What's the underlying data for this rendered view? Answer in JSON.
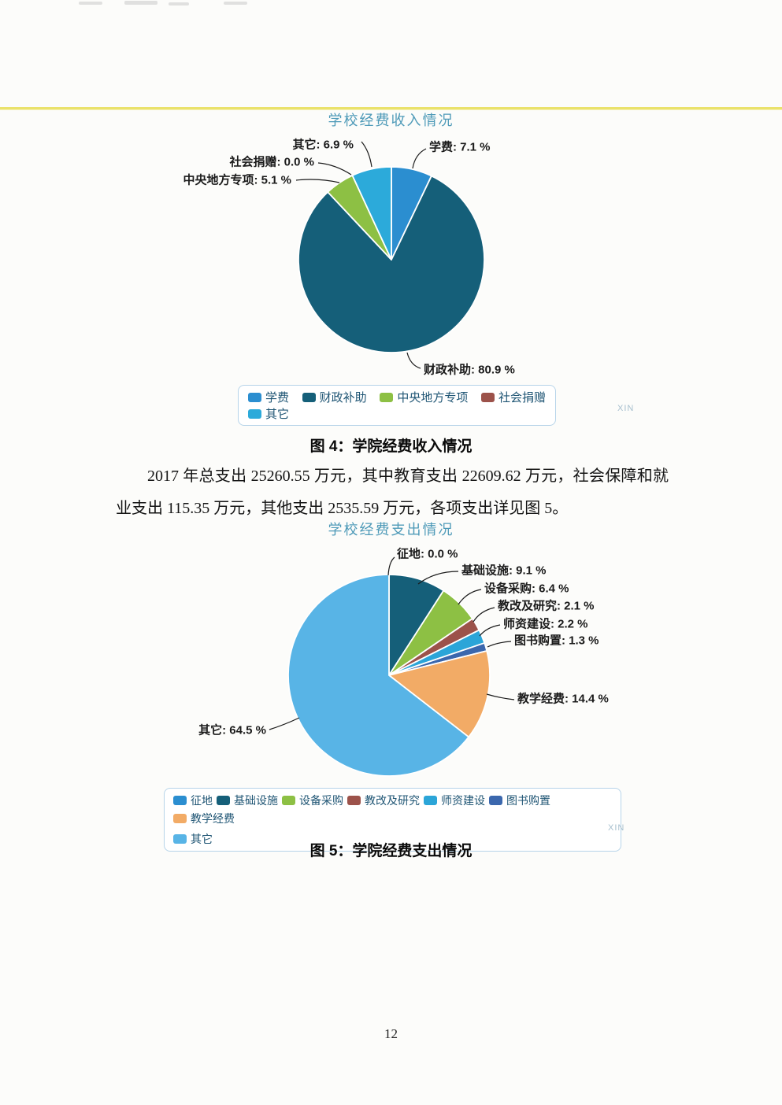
{
  "document": {
    "page_number": "12",
    "watermark": "XIN",
    "paragraph": "2017 年总支出 25260.55 万元，其中教育支出 22609.62 万元，社会保障和就业支出 115.35 万元，其他支出 2535.59 万元，各项支出详见图 5。"
  },
  "figure4": {
    "caption": "图 4：学院经费收入情况"
  },
  "figure5": {
    "caption": "图 5：学院经费支出情况"
  },
  "chart_data": [
    {
      "type": "pie",
      "title": "学校经费收入情况",
      "labels": [
        "学费",
        "财政补助",
        "中央地方专项",
        "社会捐赠",
        "其它"
      ],
      "values": [
        7.1,
        80.9,
        5.1,
        0.0,
        6.9
      ],
      "colors": [
        "#2b8ed0",
        "#155f79",
        "#8dc044",
        "#9c524a",
        "#2caada"
      ],
      "label_format": "name: value %",
      "legend_position": "bottom",
      "start_angle_deg": 0,
      "direction": "clockwise"
    },
    {
      "type": "pie",
      "title": "学校经费支出情况",
      "labels": [
        "征地",
        "基础设施",
        "设备采购",
        "教改及研究",
        "师资建设",
        "图书购置",
        "教学经费",
        "其它"
      ],
      "values": [
        0.0,
        9.1,
        6.4,
        2.1,
        2.2,
        1.3,
        14.4,
        64.5
      ],
      "colors": [
        "#2b8ed0",
        "#155f79",
        "#8dc044",
        "#9c524a",
        "#2ba5d8",
        "#3b67ad",
        "#f2ab66",
        "#58b4e6"
      ],
      "label_format": "name: value %",
      "legend_position": "bottom",
      "start_angle_deg": 0,
      "direction": "clockwise"
    }
  ]
}
